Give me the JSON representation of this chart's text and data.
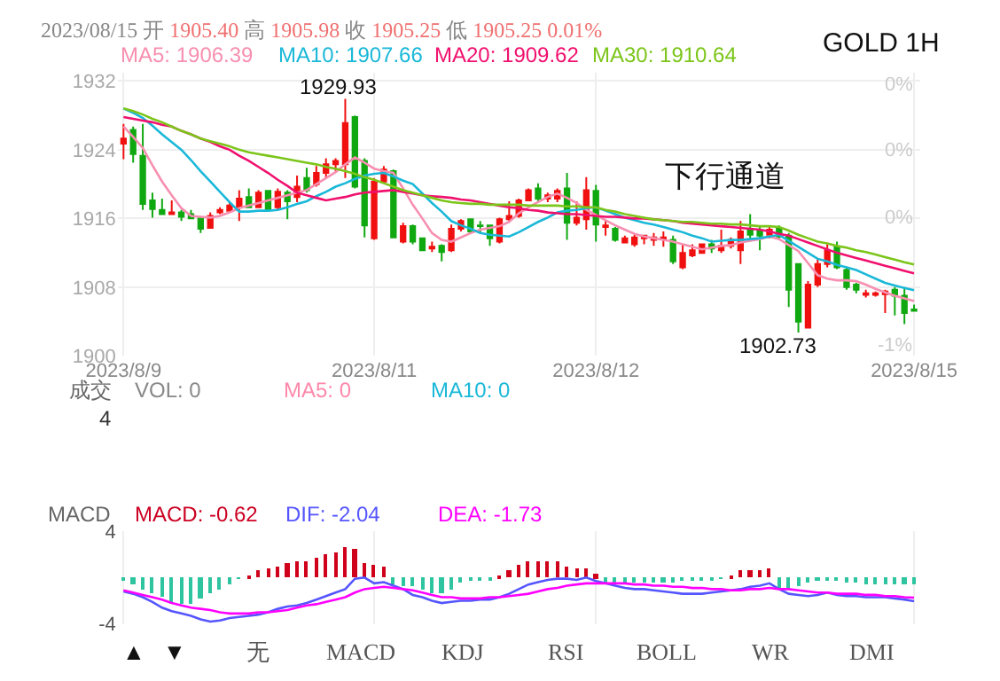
{
  "chart_data": [
    {
      "type": "candlestick",
      "title": "GOLD 1H",
      "subtitle": "2023/08/15 开 1905.40 高 1905.98 收 1905.25 低 1905.25 0.01%",
      "categories": [
        "2023/8/9",
        null,
        null,
        null,
        null,
        null,
        null,
        null,
        null,
        null,
        null,
        null,
        null,
        null,
        null,
        null,
        null,
        null,
        null,
        null,
        null,
        null,
        null,
        null,
        null,
        null,
        "2023/8/11",
        null,
        null,
        null,
        null,
        null,
        null,
        null,
        null,
        null,
        null,
        null,
        null,
        null,
        null,
        null,
        null,
        null,
        null,
        null,
        null,
        null,
        null,
        "2023/8/12",
        null,
        null,
        null,
        null,
        null,
        null,
        null,
        null,
        null,
        null,
        null,
        null,
        null,
        null,
        null,
        null,
        null,
        null,
        null,
        null,
        null,
        null,
        null,
        null,
        null,
        null,
        null,
        null,
        null,
        null,
        null,
        null,
        "2023/8/15"
      ],
      "ohlc": [
        [
          1924.7,
          1927,
          1922.9,
          1925.3
        ],
        [
          1926.3,
          1926.7,
          1922.5,
          1923.5
        ],
        [
          1923.3,
          1927,
          1917,
          1917.7
        ],
        [
          1918.1,
          1919,
          1916.1,
          1917.1
        ],
        [
          1917,
          1918.3,
          1916.4,
          1916.5
        ],
        [
          1916.5,
          1918.1,
          1916.5,
          1916.7
        ],
        [
          1916.7,
          1917,
          1915.7,
          1916.2
        ],
        [
          1916.5,
          1917,
          1915.9,
          1916
        ],
        [
          1916,
          1916.1,
          1914.3,
          1914.8
        ],
        [
          1914.9,
          1916.7,
          1914.8,
          1916.3
        ],
        [
          1916.7,
          1917.3,
          1916.5,
          1917
        ],
        [
          1916.9,
          1917.8,
          1916.7,
          1917.5
        ],
        [
          1917.3,
          1919.3,
          1915.7,
          1918.3
        ],
        [
          1918.5,
          1919.5,
          1917.2,
          1917.3
        ],
        [
          1917.3,
          1919.3,
          1917.2,
          1919
        ],
        [
          1919.2,
          1919.3,
          1916.8,
          1917
        ],
        [
          1917.3,
          1919.5,
          1917,
          1919.1
        ],
        [
          1919,
          1919.3,
          1915.9,
          1918
        ],
        [
          1918.5,
          1921,
          1917.9,
          1919.7
        ],
        [
          1920.7,
          1921.9,
          1919,
          1919.3
        ],
        [
          1920,
          1922.1,
          1919.7,
          1921.3
        ],
        [
          1921.3,
          1923,
          1920.7,
          1922.3
        ],
        [
          1922.3,
          1923,
          1921.3,
          1922.7
        ],
        [
          1922.3,
          1929.93,
          1920.7,
          1927.1
        ],
        [
          1927.8,
          1928,
          1919.5,
          1919.7
        ],
        [
          1922.7,
          1923,
          1913.8,
          1915.2
        ],
        [
          1913.7,
          1920.7,
          1913.5,
          1920.3
        ],
        [
          1920.3,
          1922.1,
          1920.1,
          1921.7
        ],
        [
          1921.5,
          1921.7,
          1913.7,
          1913.8
        ],
        [
          1913.3,
          1915.5,
          1913.1,
          1915.1
        ],
        [
          1915.1,
          1915.3,
          1913,
          1913.3
        ],
        [
          1913.7,
          1913.8,
          1912.2,
          1912.3
        ],
        [
          1912.5,
          1913.3,
          1912.1,
          1912.7
        ],
        [
          1912.8,
          1913,
          1911,
          1912.1
        ],
        [
          1912.3,
          1915.3,
          1912.1,
          1914.8
        ],
        [
          1914.8,
          1915.9,
          1914.5,
          1915.7
        ],
        [
          1915.9,
          1916,
          1914.3,
          1914.5
        ],
        [
          1915.2,
          1915.7,
          1914.3,
          1915.1
        ],
        [
          1915.2,
          1915.3,
          1912.8,
          1913.7
        ],
        [
          1913.3,
          1916.1,
          1913.1,
          1915.9
        ],
        [
          1915.9,
          1918,
          1915.7,
          1916.3
        ],
        [
          1916.3,
          1918.3,
          1916.1,
          1918.1
        ],
        [
          1918.1,
          1919.5,
          1918,
          1919.3
        ],
        [
          1919.5,
          1920.1,
          1917.9,
          1918.3
        ],
        [
          1918.3,
          1919,
          1917.9,
          1918.7
        ],
        [
          1918.3,
          1919.5,
          1917.9,
          1919.2
        ],
        [
          1919.5,
          1921.3,
          1913.5,
          1915.5
        ],
        [
          1915.5,
          1918,
          1915.2,
          1916.1
        ],
        [
          1915.9,
          1920.8,
          1914.7,
          1919.3
        ],
        [
          1919.2,
          1919.9,
          1913.3,
          1915.3
        ],
        [
          1915,
          1915.7,
          1914,
          1915.2
        ],
        [
          1914.8,
          1915,
          1913.3,
          1913.5
        ],
        [
          1913.2,
          1914,
          1913.1,
          1913.7
        ],
        [
          1913,
          1914.1,
          1912.7,
          1913.8
        ],
        [
          1913.7,
          1914.1,
          1913,
          1914
        ],
        [
          1913.5,
          1914.3,
          1912.8,
          1913.8
        ],
        [
          1913.6,
          1914.5,
          1912.7,
          1913.8
        ],
        [
          1913.5,
          1914,
          1910.7,
          1911
        ],
        [
          1910.3,
          1913,
          1910.1,
          1912
        ],
        [
          1911.7,
          1913,
          1911.5,
          1912.3
        ],
        [
          1912,
          1913,
          1912,
          1913
        ],
        [
          1913,
          1913.5,
          1912,
          1912.5
        ],
        [
          1912.3,
          1914.7,
          1912,
          1912.8
        ],
        [
          1912.8,
          1913.8,
          1912.5,
          1913.5
        ],
        [
          1912.3,
          1915.7,
          1910.7,
          1914.5
        ],
        [
          1914.8,
          1916.5,
          1913.3,
          1914.1
        ],
        [
          1914.5,
          1915,
          1912.3,
          1914
        ],
        [
          1914.1,
          1915.2,
          1913.7,
          1914.7
        ],
        [
          1914.9,
          1915.2,
          1913.5,
          1913.9
        ],
        [
          1914,
          1914.3,
          1905.7,
          1907.7
        ],
        [
          1910.7,
          1910.8,
          1902.73,
          1904
        ],
        [
          1903.3,
          1908.7,
          1903.2,
          1908.3
        ],
        [
          1908.3,
          1911.3,
          1908,
          1910.7
        ],
        [
          1910.7,
          1913,
          1910.3,
          1912.3
        ],
        [
          1912.7,
          1913.3,
          1910.1,
          1910.3
        ],
        [
          1910,
          1910.3,
          1907.7,
          1908
        ],
        [
          1908.3,
          1908.5,
          1907.3,
          1907.7
        ],
        [
          1907.1,
          1907.7,
          1906.8,
          1907.3
        ],
        [
          1907.1,
          1907.5,
          1906.9,
          1907.3
        ],
        [
          1907.2,
          1907.7,
          1905,
          1907.5
        ],
        [
          1907.7,
          1908,
          1904.7,
          1907
        ],
        [
          1907,
          1908,
          1903.7,
          1905
        ],
        [
          1905.4,
          1905.98,
          1905.25,
          1905.25
        ]
      ],
      "colors": [
        "#f01010",
        "#10a810",
        "#10a810",
        "#10a810",
        "#10a810",
        "#f01010",
        "#10a810",
        "#10a810",
        "#10a810",
        "#f01010",
        "#f01010",
        "#f01010",
        "#f01010",
        "#10a810",
        "#f01010",
        "#10a810",
        "#f01010",
        "#10a810",
        "#f01010",
        "#10a810",
        "#f01010",
        "#f01010",
        "#f01010",
        "#f01010",
        "#10a810",
        "#10a810",
        "#f01010",
        "#f01010",
        "#10a810",
        "#f01010",
        "#10a810",
        "#10a810",
        "#f01010",
        "#10a810",
        "#f01010",
        "#f01010",
        "#10a810",
        "#10a810",
        "#10a810",
        "#f01010",
        "#f01010",
        "#f01010",
        "#f01010",
        "#10a810",
        "#f01010",
        "#f01010",
        "#10a810",
        "#f01010",
        "#f01010",
        "#10a810",
        "#f01010",
        "#10a810",
        "#f01010",
        "#f01010",
        "#f01010",
        "#f01010",
        "#f01010",
        "#10a810",
        "#f01010",
        "#f01010",
        "#f01010",
        "#10a810",
        "#f01010",
        "#f01010",
        "#f01010",
        "#10a810",
        "#10a810",
        "#f01010",
        "#10a810",
        "#10a810",
        "#10a810",
        "#f01010",
        "#f01010",
        "#f01010",
        "#10a810",
        "#10a810",
        "#10a810",
        "#f01010",
        "#f01010",
        "#f01010",
        "#10a810",
        "#10a810",
        "#10a810"
      ],
      "series": [
        {
          "name": "MA5: 1906.39",
          "type": "line",
          "color": "#f78fb0",
          "values": [
            1926.7,
            1925.5,
            1924.2,
            1922.2,
            1920.3,
            1918.7,
            1917.2,
            1916.3,
            1916.2,
            1916.1,
            1916.3,
            1916.7,
            1917.2,
            1917.5,
            1917.8,
            1918.1,
            1918.4,
            1918.7,
            1919.0,
            1919.3,
            1920.0,
            1920.7,
            1921.4,
            1922.3,
            1923.1,
            1922.5,
            1921.8,
            1921.5,
            1921.3,
            1919.5,
            1917.6,
            1916.0,
            1914.3,
            1913.5,
            1913.3,
            1913.8,
            1914.3,
            1914.7,
            1914.9,
            1915.1,
            1915.6,
            1916.6,
            1917.3,
            1917.9,
            1918.5,
            1918.9,
            1918.4,
            1917.8,
            1917.0,
            1916.4,
            1915.8,
            1915.2,
            1914.7,
            1914.2,
            1913.9,
            1913.7,
            1913.5,
            1913.3,
            1913.0,
            1912.7,
            1912.4,
            1912.6,
            1912.8,
            1912.9,
            1913.2,
            1913.4,
            1913.6,
            1913.9,
            1913.6,
            1912.9,
            1912.2,
            1910.8,
            1909.4,
            1909.0,
            1908.8,
            1908.8,
            1908.7,
            1908.3,
            1907.8,
            1907.4,
            1907.0,
            1906.7,
            1906.39
          ]
        },
        {
          "name": "MA10: 1907.66",
          "type": "line",
          "color": "#1ab8d8",
          "values": [
            1928.8,
            1928.3,
            1927.7,
            1926.8,
            1925.8,
            1924.9,
            1924.0,
            1922.8,
            1921.5,
            1920.3,
            1919.1,
            1917.9,
            1916.8,
            1916.8,
            1916.9,
            1916.9,
            1917.0,
            1917.3,
            1917.7,
            1918.0,
            1918.6,
            1919.1,
            1919.7,
            1920.1,
            1920.6,
            1921.0,
            1921.2,
            1921.3,
            1920.9,
            1920.4,
            1920.0,
            1918.9,
            1917.8,
            1916.8,
            1915.7,
            1915.2,
            1914.8,
            1914.3,
            1914.1,
            1914.0,
            1913.9,
            1914.4,
            1915.0,
            1915.6,
            1916.1,
            1916.7,
            1916.9,
            1917.0,
            1917.2,
            1917.3,
            1916.9,
            1916.5,
            1916.1,
            1915.8,
            1915.5,
            1915.3,
            1915.0,
            1914.7,
            1914.4,
            1914.0,
            1913.7,
            1913.3,
            1913.4,
            1913.5,
            1913.5,
            1913.6,
            1913.7,
            1913.9,
            1914.1,
            1913.4,
            1912.7,
            1912.0,
            1911.3,
            1911.0,
            1910.6,
            1910.3,
            1910.0,
            1909.5,
            1909.0,
            1908.5,
            1908.2,
            1907.9,
            1907.66
          ]
        },
        {
          "name": "MA20: 1909.62",
          "type": "line",
          "color": "#f0106e",
          "values": [
            1927.8,
            1927.6,
            1927.4,
            1927.2,
            1926.9,
            1926.7,
            1926.2,
            1925.8,
            1925.3,
            1924.9,
            1924.4,
            1924.0,
            1923.3,
            1922.7,
            1922.0,
            1921.3,
            1920.5,
            1919.8,
            1919.0,
            1918.7,
            1918.4,
            1918.1,
            1918.3,
            1918.5,
            1918.8,
            1919.0,
            1919.1,
            1919.2,
            1919.3,
            1919.1,
            1918.9,
            1918.7,
            1918.6,
            1918.5,
            1918.4,
            1918.2,
            1918.1,
            1917.9,
            1917.7,
            1917.5,
            1917.3,
            1917.2,
            1917.0,
            1916.9,
            1916.7,
            1916.6,
            1916.5,
            1916.5,
            1916.4,
            1916.3,
            1916.2,
            1916.2,
            1916.1,
            1916.0,
            1916.0,
            1915.9,
            1915.8,
            1915.7,
            1915.5,
            1915.4,
            1915.3,
            1915.2,
            1915.1,
            1915.0,
            1914.9,
            1914.8,
            1914.7,
            1914.5,
            1914.2,
            1914.0,
            1913.6,
            1913.2,
            1912.8,
            1912.4,
            1912.0,
            1911.7,
            1911.4,
            1911.1,
            1910.8,
            1910.5,
            1910.2,
            1909.9,
            1909.62
          ]
        },
        {
          "name": "MA30: 1910.64",
          "type": "line",
          "color": "#7cc51a",
          "values": [
            1928.8,
            1928.5,
            1928.1,
            1927.6,
            1927.2,
            1926.7,
            1926.2,
            1925.8,
            1925.3,
            1925.0,
            1924.7,
            1924.4,
            1924.0,
            1923.7,
            1923.5,
            1923.3,
            1923.1,
            1922.9,
            1922.7,
            1922.5,
            1922.3,
            1922.0,
            1921.8,
            1921.5,
            1921.2,
            1920.8,
            1920.5,
            1920.1,
            1919.7,
            1919.3,
            1919.0,
            1918.7,
            1918.4,
            1918.1,
            1917.9,
            1917.8,
            1917.7,
            1917.7,
            1917.6,
            1917.6,
            1917.6,
            1917.6,
            1917.5,
            1917.5,
            1917.5,
            1917.5,
            1917.4,
            1917.4,
            1917.3,
            1917.3,
            1917.0,
            1916.8,
            1916.5,
            1916.3,
            1916.1,
            1915.9,
            1915.8,
            1915.7,
            1915.6,
            1915.6,
            1915.5,
            1915.4,
            1915.4,
            1915.3,
            1915.3,
            1915.2,
            1915.1,
            1915.1,
            1915.0,
            1914.6,
            1914.1,
            1913.7,
            1913.3,
            1913.1,
            1912.8,
            1912.6,
            1912.3,
            1912.1,
            1911.8,
            1911.5,
            1911.2,
            1910.9,
            1910.64
          ]
        }
      ],
      "ylim": [
        1900,
        1933
      ],
      "yticks": [
        1900,
        1908,
        1916,
        1924,
        1932
      ],
      "grid": true,
      "legend": false,
      "annotations": [
        "下行通道",
        "1929.93",
        "1902.73",
        "0%",
        "0%",
        "0%",
        "-1%"
      ]
    },
    {
      "type": "other",
      "annotations": [
        "成交",
        "VOL: 0",
        "MA5: 0",
        "MA10: 0",
        "4"
      ],
      "colors": [
        "#666666",
        "#888888",
        "#ff88aa",
        "#1ab8d8",
        "#333333"
      ]
    },
    {
      "type": "bar",
      "categories": [
        "2023/8/9",
        null,
        null,
        null,
        null,
        null,
        null,
        null,
        null,
        null,
        null,
        null,
        null,
        null,
        null,
        null,
        null,
        null,
        null,
        null,
        null,
        null,
        null,
        null,
        null,
        null,
        "2023/8/11",
        null,
        null,
        null,
        null,
        null,
        null,
        null,
        null,
        null,
        null,
        null,
        null,
        null,
        null,
        null,
        null,
        null,
        null,
        null,
        null,
        null,
        null,
        "2023/8/12",
        null,
        null,
        null,
        null,
        null,
        null,
        null,
        null,
        null,
        null,
        null,
        null,
        null,
        null,
        null,
        null,
        null,
        null,
        null,
        null,
        null,
        null,
        null,
        null,
        null,
        null,
        null,
        null,
        null,
        null,
        null,
        null,
        "2023/8/15"
      ],
      "series": [
        {
          "name": "MACD: -0.62",
          "type": "bar",
          "color": "#cc0022",
          "values": [
            -0.2,
            -0.6,
            -1.0,
            -1.4,
            -1.7,
            -2.2,
            -2.3,
            -2.2,
            -1.8,
            -1.4,
            -1.1,
            -0.6,
            -0.1,
            0.2,
            0.6,
            0.8,
            1.0,
            1.2,
            1.4,
            1.4,
            1.7,
            2.0,
            2.2,
            2.6,
            2.4,
            1.2,
            1.1,
            1.0,
            -0.6,
            -0.8,
            -0.8,
            -1.1,
            -1.3,
            -1.4,
            -1.0,
            -0.5,
            -0.3,
            -0.2,
            -0.2,
            0.2,
            0.6,
            1.1,
            1.4,
            1.4,
            1.4,
            1.4,
            1.0,
            0.8,
            0.8,
            0.3,
            -0.5,
            -0.5,
            -0.5,
            -0.5,
            -0.4,
            -0.4,
            -0.4,
            -0.4,
            -0.2,
            -0.2,
            -0.2,
            -0.2,
            -0.1,
            0.2,
            0.6,
            0.6,
            0.6,
            0.8,
            -1.0,
            -1.0,
            -0.8,
            -0.4,
            -0.2,
            -0.2,
            -0.2,
            -0.4,
            -0.5,
            -0.6,
            -0.6,
            -0.6,
            -0.6,
            -0.6,
            -0.62
          ],
          "colors": [
            "#2ec4a0",
            "#2ec4a0",
            "#2ec4a0",
            "#2ec4a0",
            "#2ec4a0",
            "#2ec4a0",
            "#2ec4a0",
            "#2ec4a0",
            "#2ec4a0",
            "#2ec4a0",
            "#2ec4a0",
            "#2ec4a0",
            "#2ec4a0",
            "#d0021b",
            "#d0021b",
            "#d0021b",
            "#d0021b",
            "#d0021b",
            "#d0021b",
            "#d0021b",
            "#d0021b",
            "#d0021b",
            "#d0021b",
            "#d0021b",
            "#d0021b",
            "#d0021b",
            "#d0021b",
            "#d0021b",
            "#2ec4a0",
            "#2ec4a0",
            "#2ec4a0",
            "#2ec4a0",
            "#2ec4a0",
            "#2ec4a0",
            "#2ec4a0",
            "#2ec4a0",
            "#2ec4a0",
            "#2ec4a0",
            "#2ec4a0",
            "#d0021b",
            "#d0021b",
            "#d0021b",
            "#d0021b",
            "#d0021b",
            "#d0021b",
            "#d0021b",
            "#d0021b",
            "#d0021b",
            "#d0021b",
            "#d0021b",
            "#2ec4a0",
            "#2ec4a0",
            "#2ec4a0",
            "#2ec4a0",
            "#2ec4a0",
            "#2ec4a0",
            "#2ec4a0",
            "#2ec4a0",
            "#2ec4a0",
            "#2ec4a0",
            "#2ec4a0",
            "#2ec4a0",
            "#2ec4a0",
            "#d0021b",
            "#d0021b",
            "#d0021b",
            "#d0021b",
            "#d0021b",
            "#2ec4a0",
            "#2ec4a0",
            "#2ec4a0",
            "#2ec4a0",
            "#2ec4a0",
            "#2ec4a0",
            "#2ec4a0",
            "#2ec4a0",
            "#2ec4a0",
            "#2ec4a0",
            "#2ec4a0",
            "#2ec4a0",
            "#2ec4a0",
            "#2ec4a0",
            "#2ec4a0"
          ]
        },
        {
          "name": "DIF: -2.04",
          "type": "line",
          "color": "#5555ff",
          "values": [
            -1.2,
            -1.4,
            -1.7,
            -2.1,
            -2.6,
            -2.9,
            -3.1,
            -3.3,
            -3.6,
            -3.8,
            -3.7,
            -3.5,
            -3.4,
            -3.3,
            -3.2,
            -3.0,
            -2.7,
            -2.5,
            -2.4,
            -2.2,
            -1.9,
            -1.6,
            -1.3,
            -1.0,
            -0.1,
            0.0,
            -0.5,
            -0.4,
            -0.7,
            -1.0,
            -1.5,
            -1.7,
            -2.0,
            -2.2,
            -2.1,
            -2.0,
            -2.0,
            -1.9,
            -1.9,
            -1.7,
            -1.4,
            -1.0,
            -0.6,
            -0.4,
            -0.2,
            -0.1,
            -0.1,
            -0.2,
            0.0,
            -0.3,
            -0.5,
            -0.7,
            -0.9,
            -1.0,
            -1.0,
            -1.1,
            -1.2,
            -1.3,
            -1.4,
            -1.4,
            -1.4,
            -1.3,
            -1.2,
            -1.1,
            -1.0,
            -0.8,
            -0.7,
            -0.5,
            -1.0,
            -1.4,
            -1.5,
            -1.6,
            -1.5,
            -1.3,
            -1.5,
            -1.6,
            -1.6,
            -1.7,
            -1.7,
            -1.7,
            -1.8,
            -1.9,
            -2.04
          ]
        },
        {
          "name": "DEA: -1.73",
          "type": "line",
          "color": "#ff00ff",
          "values": [
            -1.1,
            -1.3,
            -1.5,
            -1.7,
            -1.9,
            -2.2,
            -2.4,
            -2.6,
            -2.7,
            -2.8,
            -3.0,
            -3.1,
            -3.1,
            -3.1,
            -3.0,
            -3.0,
            -2.9,
            -2.8,
            -2.6,
            -2.4,
            -2.3,
            -2.1,
            -1.9,
            -1.7,
            -1.3,
            -1.0,
            -0.9,
            -0.8,
            -0.9,
            -1.0,
            -1.1,
            -1.3,
            -1.5,
            -1.7,
            -1.7,
            -1.8,
            -1.8,
            -1.8,
            -1.7,
            -1.7,
            -1.6,
            -1.5,
            -1.4,
            -1.2,
            -1.0,
            -0.9,
            -0.7,
            -0.6,
            -0.5,
            -0.5,
            -0.5,
            -0.5,
            -0.5,
            -0.6,
            -0.6,
            -0.7,
            -0.7,
            -0.8,
            -0.8,
            -0.9,
            -0.9,
            -1.0,
            -1.0,
            -1.1,
            -1.1,
            -1.0,
            -1.0,
            -0.9,
            -1.0,
            -1.0,
            -1.1,
            -1.2,
            -1.3,
            -1.3,
            -1.4,
            -1.4,
            -1.4,
            -1.5,
            -1.5,
            -1.6,
            -1.6,
            -1.7,
            -1.73
          ]
        }
      ],
      "ylim": [
        -4,
        4
      ],
      "yticks": [
        -4,
        4
      ],
      "tick_labels": "y",
      "grid": "x",
      "legend": false,
      "annotations": [
        "MACD",
        "▲",
        "▼",
        "无",
        "MACD",
        "KDJ",
        "RSI",
        "BOLL",
        "WR",
        "DMI"
      ]
    }
  ]
}
